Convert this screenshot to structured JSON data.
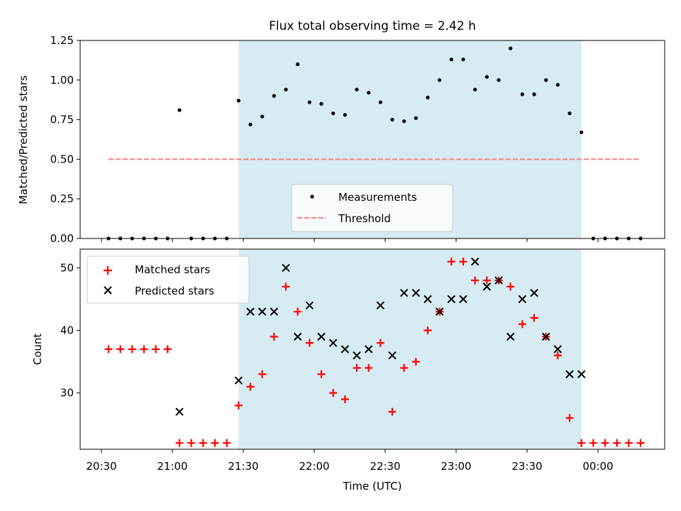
{
  "chart_data": [
    {
      "type": "scatter",
      "title": "Flux total observing time = 2.42 h",
      "xlabel": "",
      "ylabel": "Matched/Predicted stars",
      "ylim": [
        0,
        1.25
      ],
      "yticks": [
        "0.00",
        "0.25",
        "0.50",
        "0.75",
        "1.00",
        "1.25"
      ],
      "observing_window": [
        "21:28",
        "23:53"
      ],
      "legend": {
        "placement": "lower-center",
        "entries": [
          "Measurements",
          "Threshold"
        ]
      },
      "series": [
        {
          "name": "Measurements",
          "color": "#000000",
          "marker": "dot",
          "x": [
            "20:33",
            "20:38",
            "20:43",
            "20:48",
            "20:53",
            "20:58",
            "21:03",
            "21:08",
            "21:13",
            "21:18",
            "21:23",
            "21:28",
            "21:33",
            "21:38",
            "21:43",
            "21:48",
            "21:53",
            "21:58",
            "22:03",
            "22:08",
            "22:13",
            "22:18",
            "22:23",
            "22:28",
            "22:33",
            "22:38",
            "22:43",
            "22:48",
            "22:53",
            "22:58",
            "23:03",
            "23:08",
            "23:13",
            "23:18",
            "23:23",
            "23:28",
            "23:33",
            "23:38",
            "23:43",
            "23:48",
            "23:53",
            "23:58",
            "00:03",
            "00:08",
            "00:13",
            "00:18"
          ],
          "y": [
            0,
            0,
            0,
            0,
            0,
            0,
            0.81,
            0,
            0,
            0,
            0,
            0.87,
            0.72,
            0.77,
            0.9,
            0.94,
            1.1,
            0.86,
            0.85,
            0.79,
            0.78,
            0.94,
            0.92,
            0.86,
            0.75,
            0.74,
            0.76,
            0.89,
            1.0,
            1.13,
            1.13,
            0.94,
            1.02,
            1.0,
            1.2,
            0.91,
            0.91,
            1.0,
            0.97,
            0.79,
            0.67,
            0,
            0,
            0,
            0,
            0
          ]
        },
        {
          "name": "Threshold",
          "color": "#ff7f7f",
          "style": "dashed",
          "x": [
            "20:33",
            "00:18"
          ],
          "y": [
            0.5,
            0.5
          ]
        }
      ]
    },
    {
      "type": "scatter",
      "xlabel": "Time (UTC)",
      "ylabel": "Count",
      "ylim": [
        21,
        53
      ],
      "yticks": [
        "30",
        "40",
        "50"
      ],
      "xticks": [
        "20:30",
        "21:00",
        "21:30",
        "22:00",
        "22:30",
        "23:00",
        "23:30",
        "00:00"
      ],
      "observing_window": [
        "21:28",
        "23:53"
      ],
      "legend": {
        "placement": "top-left",
        "entries": [
          "Matched stars",
          "Predicted stars"
        ]
      },
      "series": [
        {
          "name": "Matched stars",
          "color": "#ff0000",
          "marker": "plus",
          "x": [
            "20:33",
            "20:38",
            "20:43",
            "20:48",
            "20:53",
            "20:58",
            "21:03",
            "21:08",
            "21:13",
            "21:18",
            "21:23",
            "21:28",
            "21:33",
            "21:38",
            "21:43",
            "21:48",
            "21:53",
            "21:58",
            "22:03",
            "22:08",
            "22:13",
            "22:18",
            "22:23",
            "22:28",
            "22:33",
            "22:38",
            "22:43",
            "22:48",
            "22:53",
            "22:58",
            "23:03",
            "23:08",
            "23:13",
            "23:18",
            "23:23",
            "23:28",
            "23:33",
            "23:38",
            "23:43",
            "23:48",
            "23:53",
            "23:58",
            "00:03",
            "00:08",
            "00:13",
            "00:18"
          ],
          "y": [
            37,
            37,
            37,
            37,
            37,
            37,
            22,
            22,
            22,
            22,
            22,
            28,
            31,
            33,
            39,
            47,
            43,
            38,
            33,
            30,
            29,
            34,
            34,
            38,
            27,
            34,
            35,
            40,
            43,
            51,
            51,
            48,
            48,
            48,
            47,
            41,
            42,
            39,
            36,
            26,
            22,
            22,
            22,
            22,
            22,
            22
          ]
        },
        {
          "name": "Predicted stars",
          "color": "#000000",
          "marker": "x",
          "x": [
            "21:03",
            "21:28",
            "21:33",
            "21:38",
            "21:43",
            "21:48",
            "21:53",
            "21:58",
            "22:03",
            "22:08",
            "22:13",
            "22:18",
            "22:23",
            "22:28",
            "22:33",
            "22:38",
            "22:43",
            "22:48",
            "22:53",
            "22:58",
            "23:03",
            "23:08",
            "23:13",
            "23:18",
            "23:23",
            "23:28",
            "23:33",
            "23:38",
            "23:43",
            "23:48",
            "23:53"
          ],
          "y": [
            27,
            32,
            43,
            43,
            43,
            50,
            39,
            44,
            39,
            38,
            37,
            36,
            37,
            44,
            36,
            46,
            46,
            45,
            43,
            45,
            45,
            51,
            47,
            48,
            39,
            45,
            46,
            39,
            37,
            33,
            33
          ]
        }
      ]
    }
  ],
  "colors": {
    "window_shade": "#add8e6",
    "matched": "#ff0000",
    "predicted": "#000000",
    "measurements": "#000000",
    "threshold": "#ff7f7f"
  }
}
